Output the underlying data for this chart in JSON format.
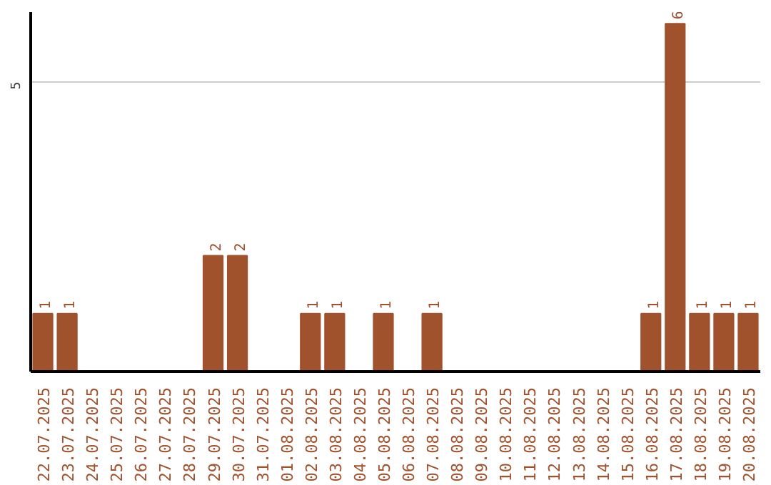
{
  "chart_data": {
    "type": "bar",
    "categories": [
      "22.07.2025",
      "23.07.2025",
      "24.07.2025",
      "25.07.2025",
      "26.07.2025",
      "27.07.2025",
      "28.07.2025",
      "29.07.2025",
      "30.07.2025",
      "31.07.2025",
      "01.08.2025",
      "02.08.2025",
      "03.08.2025",
      "04.08.2025",
      "05.08.2025",
      "06.08.2025",
      "07.08.2025",
      "08.08.2025",
      "09.08.2025",
      "10.08.2025",
      "11.08.2025",
      "12.08.2025",
      "13.08.2025",
      "14.08.2025",
      "15.08.2025",
      "16.08.2025",
      "17.08.2025",
      "18.08.2025",
      "19.08.2025",
      "20.08.2025"
    ],
    "values": [
      1,
      1,
      0,
      0,
      0,
      0,
      0,
      2,
      2,
      0,
      0,
      1,
      1,
      0,
      1,
      0,
      1,
      0,
      0,
      0,
      0,
      0,
      0,
      0,
      0,
      1,
      6,
      1,
      1,
      1
    ],
    "value_labels": [
      "1",
      "1",
      null,
      null,
      null,
      null,
      null,
      "2",
      "2",
      null,
      null,
      "1",
      "1",
      null,
      "1",
      null,
      "1",
      null,
      null,
      null,
      null,
      null,
      null,
      null,
      null,
      "1",
      "6",
      "1",
      "1",
      "1"
    ],
    "color": "#a0522d",
    "ylim": [
      0,
      6.2
    ],
    "yticks": [
      5
    ],
    "grid": "y"
  }
}
